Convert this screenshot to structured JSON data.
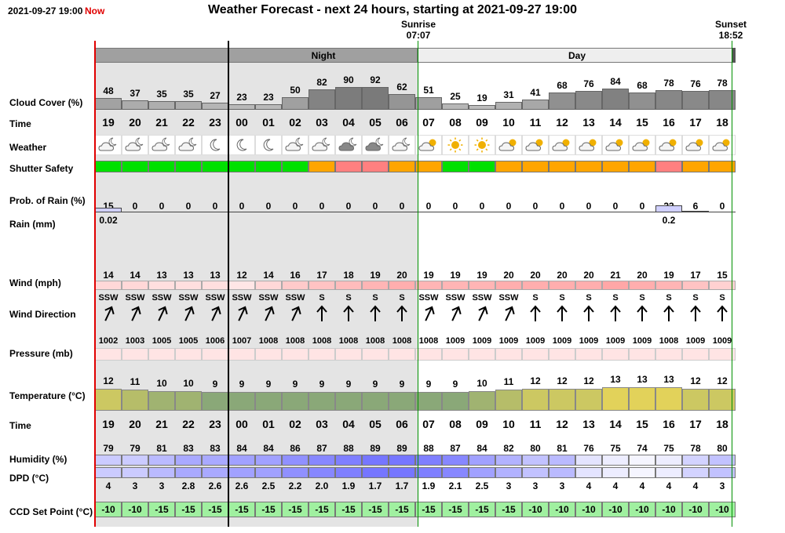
{
  "header": {
    "datetime": "2021-09-27 19:00",
    "now_label": "Now",
    "title": "Weather Forecast - next 24 hours, starting at 2021-09-27 19:00",
    "sunrise_label": "Sunrise",
    "sunrise_time": "07:07",
    "sunset_label": "Sunset",
    "sunset_time": "18:52",
    "night_label": "Night",
    "day_label": "Day"
  },
  "labels": {
    "cloud": "Cloud Cover (%)",
    "time": "Time",
    "weather": "Weather",
    "shutter": "Shutter Safety",
    "prob_rain": "Prob. of Rain (%)",
    "rain": "Rain (mm)",
    "wind": "Wind (mph)",
    "wind_dir": "Wind Direction",
    "pressure": "Pressure (mb)",
    "temperature": "Temperature (°C)",
    "time2": "Time",
    "humidity": "Humidity (%)",
    "dpd": "DPD (°C)",
    "ccd": "CCD Set Point (°C)"
  },
  "hours": [
    "19",
    "20",
    "21",
    "22",
    "23",
    "00",
    "01",
    "02",
    "03",
    "04",
    "05",
    "06",
    "07",
    "08",
    "09",
    "10",
    "11",
    "12",
    "13",
    "14",
    "15",
    "16",
    "17",
    "18"
  ],
  "cloud": [
    48,
    37,
    35,
    35,
    27,
    23,
    23,
    50,
    82,
    90,
    92,
    62,
    51,
    25,
    19,
    31,
    41,
    68,
    76,
    84,
    68,
    78,
    76,
    78
  ],
  "weather_icons": [
    "partly-cloudy-night-icon",
    "partly-cloudy-night-icon",
    "partly-cloudy-night-icon",
    "partly-cloudy-night-icon",
    "moon-icon",
    "moon-icon",
    "moon-icon",
    "partly-cloudy-night-icon",
    "partly-cloudy-night-icon",
    "cloud-night-icon",
    "cloud-night-icon",
    "partly-cloudy-night-icon",
    "partly-cloudy-day-icon",
    "sun-icon",
    "sun-icon",
    "partly-cloudy-day-icon",
    "partly-cloudy-day-icon",
    "partly-cloudy-day-icon",
    "partly-cloudy-day-icon",
    "partly-cloudy-day-icon",
    "partly-cloudy-day-icon",
    "partly-cloudy-day-icon",
    "partly-cloudy-day-icon",
    "partly-cloudy-day-icon"
  ],
  "shutter": [
    "safe",
    "safe",
    "safe",
    "safe",
    "safe",
    "safe",
    "safe",
    "safe",
    "caution",
    "unsafe",
    "unsafe",
    "caution",
    "caution",
    "safe",
    "safe",
    "caution",
    "caution",
    "caution",
    "caution",
    "caution",
    "caution",
    "unsafe",
    "caution",
    "caution"
  ],
  "shutter_colors": {
    "safe": "#00e000",
    "caution": "#ffa500",
    "unsafe": "#ff8080"
  },
  "prob_rain": [
    15,
    0,
    0,
    0,
    0,
    0,
    0,
    0,
    0,
    0,
    0,
    0,
    0,
    0,
    0,
    0,
    0,
    0,
    0,
    0,
    0,
    23,
    6,
    0
  ],
  "rain": [
    "0.02",
    "",
    "",
    "",
    "",
    "",
    "",
    "",
    "",
    "",
    "",
    "",
    "",
    "",
    "",
    "",
    "",
    "",
    "",
    "",
    "",
    "0.2",
    "",
    ""
  ],
  "wind": [
    14,
    14,
    13,
    13,
    13,
    12,
    14,
    16,
    17,
    18,
    19,
    20,
    19,
    19,
    19,
    20,
    20,
    20,
    20,
    21,
    20,
    19,
    17,
    15
  ],
  "wind_dir": [
    "SSW",
    "SSW",
    "SSW",
    "SSW",
    "SSW",
    "SSW",
    "SSW",
    "SSW",
    "S",
    "S",
    "S",
    "S",
    "SSW",
    "SSW",
    "SSW",
    "SSW",
    "S",
    "S",
    "S",
    "S",
    "S",
    "S",
    "S",
    "S"
  ],
  "pressure": [
    1002,
    1003,
    1005,
    1005,
    1006,
    1007,
    1008,
    1008,
    1008,
    1008,
    1008,
    1008,
    1008,
    1009,
    1009,
    1009,
    1009,
    1009,
    1009,
    1009,
    1009,
    1008,
    1009,
    1009
  ],
  "temperature": [
    12,
    11,
    10,
    10,
    9,
    9,
    9,
    9,
    9,
    9,
    9,
    9,
    9,
    9,
    10,
    11,
    12,
    12,
    12,
    13,
    13,
    13,
    12,
    12
  ],
  "humidity": [
    79,
    79,
    81,
    83,
    83,
    84,
    84,
    86,
    87,
    88,
    89,
    89,
    88,
    87,
    84,
    82,
    80,
    81,
    76,
    75,
    74,
    75,
    78,
    80
  ],
  "dpd": [
    "4",
    "3",
    "3",
    "2.8",
    "2.6",
    "2.6",
    "2.5",
    "2.2",
    "2.0",
    "1.9",
    "1.7",
    "1.7",
    "1.9",
    "2.1",
    "2.5",
    "3",
    "3",
    "3",
    "4",
    "4",
    "4",
    "4",
    "4",
    "3"
  ],
  "ccd": [
    -10,
    -10,
    -15,
    -15,
    -15,
    -15,
    -15,
    -15,
    -15,
    -15,
    -15,
    -15,
    -15,
    -15,
    -15,
    -15,
    -10,
    -10,
    -10,
    -10,
    -10,
    -10,
    -10,
    -10
  ],
  "colors": {
    "night_shade": "#e4e4e4",
    "now_line": "#e00000",
    "sun_line": "#009000",
    "ccd_bg": "#a0f0a0",
    "pressure_bg": "#ffe4e4",
    "wind_bar": "#ffb0b0",
    "rain_bar": "#d0d0ff"
  }
}
